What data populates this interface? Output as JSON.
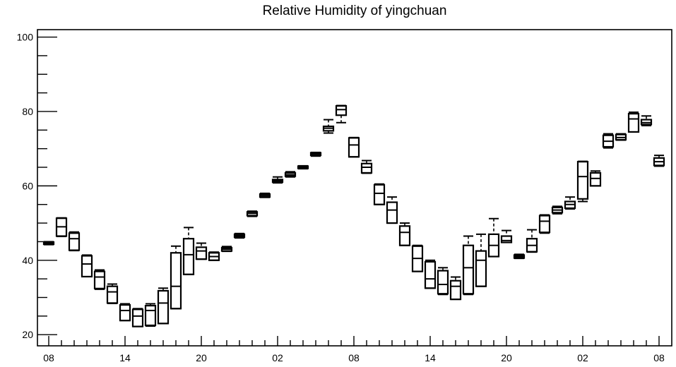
{
  "chart_data": {
    "type": "boxplot",
    "title": "Relative Humidity of yingchuan",
    "xlabel": "",
    "ylabel": "",
    "ylim": [
      17,
      102
    ],
    "yticks": [
      20,
      40,
      60,
      80,
      100
    ],
    "ytick_labels": [
      "20",
      "40",
      "60",
      "80",
      "100"
    ],
    "xtick_labels": [
      {
        "index": 0,
        "label": "08"
      },
      {
        "index": 6,
        "label": "14"
      },
      {
        "index": 12,
        "label": "20"
      },
      {
        "index": 18,
        "label": "02"
      },
      {
        "index": 24,
        "label": "08"
      },
      {
        "index": 30,
        "label": "14"
      },
      {
        "index": 36,
        "label": "20"
      },
      {
        "index": 42,
        "label": "02"
      },
      {
        "index": 48,
        "label": "08"
      }
    ],
    "grid": false,
    "boxes": [
      {
        "i": 0,
        "q1": 44.3,
        "median": 44.6,
        "q3": 44.9,
        "min": 44.2,
        "max": 45.0
      },
      {
        "i": 1,
        "q1": 46.5,
        "median": 49.0,
        "q3": 51.3,
        "min": 46.4,
        "max": 51.4
      },
      {
        "i": 2,
        "q1": 42.7,
        "median": 45.8,
        "q3": 47.3,
        "min": 42.6,
        "max": 47.6
      },
      {
        "i": 3,
        "q1": 35.6,
        "median": 39.0,
        "q3": 41.2,
        "min": 35.6,
        "max": 41.4
      },
      {
        "i": 4,
        "q1": 32.4,
        "median": 35.5,
        "q3": 37.0,
        "min": 32.2,
        "max": 37.4
      },
      {
        "i": 5,
        "q1": 28.5,
        "median": 31.5,
        "q3": 33.0,
        "min": 28.4,
        "max": 33.6
      },
      {
        "i": 6,
        "q1": 23.8,
        "median": 26.5,
        "q3": 28.0,
        "min": 23.8,
        "max": 28.3
      },
      {
        "i": 7,
        "q1": 22.2,
        "median": 25.0,
        "q3": 26.8,
        "min": 22.2,
        "max": 27.0
      },
      {
        "i": 8,
        "q1": 22.5,
        "median": 26.5,
        "q3": 27.8,
        "min": 22.3,
        "max": 28.3
      },
      {
        "i": 9,
        "q1": 23.0,
        "median": 28.5,
        "q3": 31.8,
        "min": 23.0,
        "max": 32.5
      },
      {
        "i": 10,
        "q1": 27.0,
        "median": 33.0,
        "q3": 42.0,
        "min": 27.0,
        "max": 43.8
      },
      {
        "i": 11,
        "q1": 36.2,
        "median": 41.5,
        "q3": 45.8,
        "min": 36.2,
        "max": 48.8
      },
      {
        "i": 12,
        "q1": 40.3,
        "median": 42.5,
        "q3": 43.5,
        "min": 40.3,
        "max": 44.6
      },
      {
        "i": 13,
        "q1": 40.0,
        "median": 41.0,
        "q3": 42.0,
        "min": 40.0,
        "max": 42.2
      },
      {
        "i": 14,
        "q1": 42.5,
        "median": 43.0,
        "q3": 43.4,
        "min": 42.4,
        "max": 43.7
      },
      {
        "i": 15,
        "q1": 46.2,
        "median": 46.6,
        "q3": 47.0,
        "min": 46.0,
        "max": 47.2
      },
      {
        "i": 16,
        "q1": 52.0,
        "median": 52.6,
        "q3": 53.0,
        "min": 51.8,
        "max": 53.2
      },
      {
        "i": 17,
        "q1": 57.0,
        "median": 57.4,
        "q3": 57.8,
        "min": 56.9,
        "max": 58.0
      },
      {
        "i": 18,
        "q1": 61.0,
        "median": 61.4,
        "q3": 61.7,
        "min": 60.8,
        "max": 62.4
      },
      {
        "i": 19,
        "q1": 62.6,
        "median": 63.0,
        "q3": 63.5,
        "min": 62.4,
        "max": 63.8
      },
      {
        "i": 20,
        "q1": 64.7,
        "median": 65.0,
        "q3": 65.3,
        "min": 64.6,
        "max": 65.4
      },
      {
        "i": 21,
        "q1": 68.2,
        "median": 68.6,
        "q3": 68.9,
        "min": 68.0,
        "max": 69.0
      },
      {
        "i": 22,
        "q1": 74.8,
        "median": 75.5,
        "q3": 76.0,
        "min": 74.2,
        "max": 77.8
      },
      {
        "i": 23,
        "q1": 79.0,
        "median": 80.5,
        "q3": 81.5,
        "min": 77.0,
        "max": 81.6
      },
      {
        "i": 24,
        "q1": 67.8,
        "median": 71.0,
        "q3": 72.9,
        "min": 67.8,
        "max": 73.0
      },
      {
        "i": 25,
        "q1": 63.5,
        "median": 65.0,
        "q3": 66.0,
        "min": 63.4,
        "max": 66.8
      },
      {
        "i": 26,
        "q1": 55.0,
        "median": 58.0,
        "q3": 60.3,
        "min": 55.0,
        "max": 60.5
      },
      {
        "i": 27,
        "q1": 50.0,
        "median": 53.5,
        "q3": 55.6,
        "min": 50.0,
        "max": 57.0
      },
      {
        "i": 28,
        "q1": 44.0,
        "median": 47.5,
        "q3": 49.2,
        "min": 44.0,
        "max": 50.0
      },
      {
        "i": 29,
        "q1": 37.0,
        "median": 40.5,
        "q3": 43.8,
        "min": 37.0,
        "max": 44.0
      },
      {
        "i": 30,
        "q1": 32.5,
        "median": 35.0,
        "q3": 39.6,
        "min": 32.5,
        "max": 40.0
      },
      {
        "i": 31,
        "q1": 31.0,
        "median": 33.5,
        "q3": 37.2,
        "min": 30.8,
        "max": 38.0
      },
      {
        "i": 32,
        "q1": 29.5,
        "median": 33.0,
        "q3": 34.5,
        "min": 29.5,
        "max": 35.5
      },
      {
        "i": 33,
        "q1": 31.0,
        "median": 38.0,
        "q3": 44.0,
        "min": 30.8,
        "max": 46.5
      },
      {
        "i": 34,
        "q1": 33.0,
        "median": 40.0,
        "q3": 42.5,
        "min": 33.0,
        "max": 47.0
      },
      {
        "i": 35,
        "q1": 41.0,
        "median": 44.0,
        "q3": 47.0,
        "min": 41.0,
        "max": 51.2
      },
      {
        "i": 36,
        "q1": 44.8,
        "median": 45.3,
        "q3": 46.5,
        "min": 44.8,
        "max": 48.0
      },
      {
        "i": 37,
        "q1": 40.6,
        "median": 41.0,
        "q3": 41.4,
        "min": 40.5,
        "max": 41.6
      },
      {
        "i": 38,
        "q1": 42.3,
        "median": 44.0,
        "q3": 45.8,
        "min": 42.2,
        "max": 48.2
      },
      {
        "i": 39,
        "q1": 47.5,
        "median": 50.5,
        "q3": 52.0,
        "min": 47.3,
        "max": 52.2
      },
      {
        "i": 40,
        "q1": 52.8,
        "median": 53.5,
        "q3": 54.2,
        "min": 52.5,
        "max": 54.5
      },
      {
        "i": 41,
        "q1": 54.0,
        "median": 55.0,
        "q3": 55.8,
        "min": 53.8,
        "max": 57.0
      },
      {
        "i": 42,
        "q1": 56.5,
        "median": 62.5,
        "q3": 66.5,
        "min": 55.8,
        "max": 66.6
      },
      {
        "i": 43,
        "q1": 60.0,
        "median": 62.0,
        "q3": 63.5,
        "min": 60.0,
        "max": 64.0
      },
      {
        "i": 44,
        "q1": 70.5,
        "median": 72.0,
        "q3": 73.6,
        "min": 70.2,
        "max": 74.0
      },
      {
        "i": 45,
        "q1": 72.4,
        "median": 73.0,
        "q3": 73.8,
        "min": 72.3,
        "max": 74.0
      },
      {
        "i": 46,
        "q1": 74.5,
        "median": 78.0,
        "q3": 79.4,
        "min": 74.5,
        "max": 79.8
      },
      {
        "i": 47,
        "q1": 76.5,
        "median": 77.0,
        "q3": 77.8,
        "min": 76.2,
        "max": 78.8
      },
      {
        "i": 48,
        "q1": 65.5,
        "median": 66.5,
        "q3": 67.5,
        "min": 65.3,
        "max": 68.2
      }
    ]
  }
}
